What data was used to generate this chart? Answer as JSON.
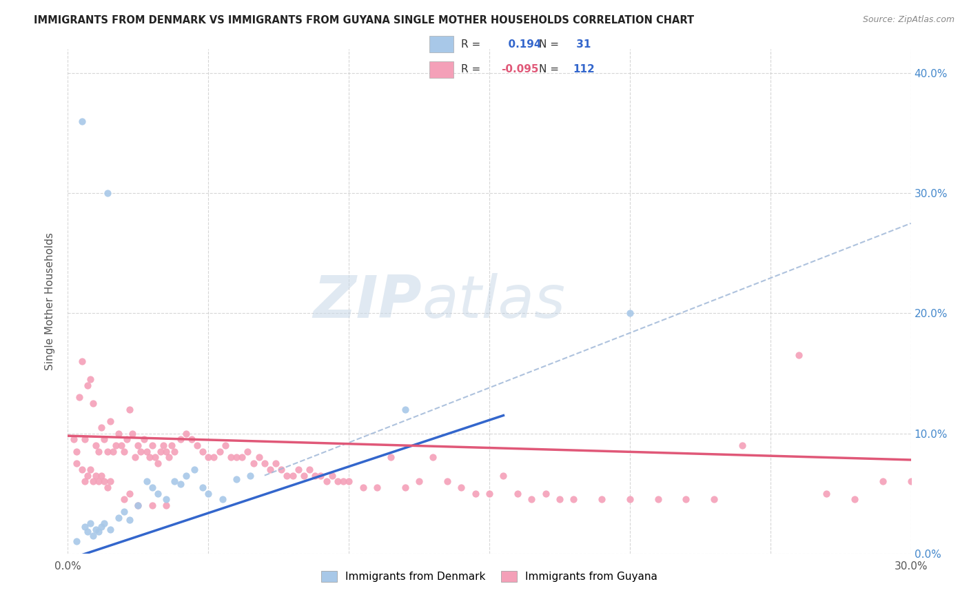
{
  "title": "IMMIGRANTS FROM DENMARK VS IMMIGRANTS FROM GUYANA SINGLE MOTHER HOUSEHOLDS CORRELATION CHART",
  "source": "Source: ZipAtlas.com",
  "ylabel": "Single Mother Households",
  "xlim": [
    0.0,
    0.3
  ],
  "ylim": [
    0.0,
    0.42
  ],
  "legend_denmark_label": "Immigrants from Denmark",
  "legend_guyana_label": "Immigrants from Guyana",
  "r_denmark": 0.194,
  "n_denmark": 31,
  "r_guyana": -0.095,
  "n_guyana": 112,
  "denmark_color": "#a8c8e8",
  "guyana_color": "#f4a0b8",
  "denmark_line_color": "#3366cc",
  "guyana_line_color": "#e05878",
  "dashed_line_color": "#a0b8d8",
  "watermark_zip": "ZIP",
  "watermark_atlas": "atlas",
  "background_color": "#ffffff",
  "denmark_scatter": [
    [
      0.003,
      0.01
    ],
    [
      0.005,
      0.36
    ],
    [
      0.006,
      0.022
    ],
    [
      0.007,
      0.018
    ],
    [
      0.008,
      0.025
    ],
    [
      0.009,
      0.015
    ],
    [
      0.01,
      0.02
    ],
    [
      0.011,
      0.018
    ],
    [
      0.012,
      0.022
    ],
    [
      0.013,
      0.025
    ],
    [
      0.014,
      0.3
    ],
    [
      0.015,
      0.02
    ],
    [
      0.018,
      0.03
    ],
    [
      0.02,
      0.035
    ],
    [
      0.022,
      0.028
    ],
    [
      0.025,
      0.04
    ],
    [
      0.028,
      0.06
    ],
    [
      0.03,
      0.055
    ],
    [
      0.032,
      0.05
    ],
    [
      0.035,
      0.045
    ],
    [
      0.038,
      0.06
    ],
    [
      0.04,
      0.058
    ],
    [
      0.042,
      0.065
    ],
    [
      0.045,
      0.07
    ],
    [
      0.048,
      0.055
    ],
    [
      0.05,
      0.05
    ],
    [
      0.055,
      0.045
    ],
    [
      0.06,
      0.062
    ],
    [
      0.065,
      0.065
    ],
    [
      0.12,
      0.12
    ],
    [
      0.2,
      0.2
    ]
  ],
  "guyana_scatter": [
    [
      0.002,
      0.095
    ],
    [
      0.003,
      0.085
    ],
    [
      0.003,
      0.075
    ],
    [
      0.004,
      0.13
    ],
    [
      0.005,
      0.16
    ],
    [
      0.005,
      0.07
    ],
    [
      0.006,
      0.095
    ],
    [
      0.006,
      0.06
    ],
    [
      0.007,
      0.14
    ],
    [
      0.007,
      0.065
    ],
    [
      0.008,
      0.145
    ],
    [
      0.008,
      0.07
    ],
    [
      0.009,
      0.125
    ],
    [
      0.009,
      0.06
    ],
    [
      0.01,
      0.09
    ],
    [
      0.01,
      0.065
    ],
    [
      0.011,
      0.085
    ],
    [
      0.011,
      0.06
    ],
    [
      0.012,
      0.105
    ],
    [
      0.012,
      0.065
    ],
    [
      0.013,
      0.095
    ],
    [
      0.013,
      0.06
    ],
    [
      0.014,
      0.085
    ],
    [
      0.014,
      0.055
    ],
    [
      0.015,
      0.11
    ],
    [
      0.015,
      0.06
    ],
    [
      0.016,
      0.085
    ],
    [
      0.017,
      0.09
    ],
    [
      0.018,
      0.1
    ],
    [
      0.019,
      0.09
    ],
    [
      0.02,
      0.085
    ],
    [
      0.02,
      0.045
    ],
    [
      0.021,
      0.095
    ],
    [
      0.022,
      0.12
    ],
    [
      0.022,
      0.05
    ],
    [
      0.023,
      0.1
    ],
    [
      0.024,
      0.08
    ],
    [
      0.025,
      0.09
    ],
    [
      0.025,
      0.04
    ],
    [
      0.026,
      0.085
    ],
    [
      0.027,
      0.095
    ],
    [
      0.028,
      0.085
    ],
    [
      0.029,
      0.08
    ],
    [
      0.03,
      0.09
    ],
    [
      0.03,
      0.04
    ],
    [
      0.031,
      0.08
    ],
    [
      0.032,
      0.075
    ],
    [
      0.033,
      0.085
    ],
    [
      0.034,
      0.09
    ],
    [
      0.035,
      0.085
    ],
    [
      0.035,
      0.04
    ],
    [
      0.036,
      0.08
    ],
    [
      0.037,
      0.09
    ],
    [
      0.038,
      0.085
    ],
    [
      0.04,
      0.095
    ],
    [
      0.042,
      0.1
    ],
    [
      0.044,
      0.095
    ],
    [
      0.046,
      0.09
    ],
    [
      0.048,
      0.085
    ],
    [
      0.05,
      0.08
    ],
    [
      0.052,
      0.08
    ],
    [
      0.054,
      0.085
    ],
    [
      0.056,
      0.09
    ],
    [
      0.058,
      0.08
    ],
    [
      0.06,
      0.08
    ],
    [
      0.062,
      0.08
    ],
    [
      0.064,
      0.085
    ],
    [
      0.066,
      0.075
    ],
    [
      0.068,
      0.08
    ],
    [
      0.07,
      0.075
    ],
    [
      0.072,
      0.07
    ],
    [
      0.074,
      0.075
    ],
    [
      0.076,
      0.07
    ],
    [
      0.078,
      0.065
    ],
    [
      0.08,
      0.065
    ],
    [
      0.082,
      0.07
    ],
    [
      0.084,
      0.065
    ],
    [
      0.086,
      0.07
    ],
    [
      0.088,
      0.065
    ],
    [
      0.09,
      0.065
    ],
    [
      0.092,
      0.06
    ],
    [
      0.094,
      0.065
    ],
    [
      0.096,
      0.06
    ],
    [
      0.098,
      0.06
    ],
    [
      0.1,
      0.06
    ],
    [
      0.105,
      0.055
    ],
    [
      0.11,
      0.055
    ],
    [
      0.115,
      0.08
    ],
    [
      0.12,
      0.055
    ],
    [
      0.125,
      0.06
    ],
    [
      0.13,
      0.08
    ],
    [
      0.135,
      0.06
    ],
    [
      0.14,
      0.055
    ],
    [
      0.145,
      0.05
    ],
    [
      0.15,
      0.05
    ],
    [
      0.155,
      0.065
    ],
    [
      0.16,
      0.05
    ],
    [
      0.165,
      0.045
    ],
    [
      0.17,
      0.05
    ],
    [
      0.175,
      0.045
    ],
    [
      0.18,
      0.045
    ],
    [
      0.19,
      0.045
    ],
    [
      0.2,
      0.045
    ],
    [
      0.21,
      0.045
    ],
    [
      0.22,
      0.045
    ],
    [
      0.23,
      0.045
    ],
    [
      0.24,
      0.09
    ],
    [
      0.26,
      0.165
    ],
    [
      0.27,
      0.05
    ],
    [
      0.28,
      0.045
    ],
    [
      0.29,
      0.06
    ],
    [
      0.3,
      0.06
    ]
  ],
  "dk_line_x0": 0.0,
  "dk_line_y0": -0.005,
  "dk_line_x1": 0.155,
  "dk_line_y1": 0.115,
  "gy_line_x0": 0.0,
  "gy_line_y0": 0.098,
  "gy_line_x1": 0.3,
  "gy_line_y1": 0.078,
  "dash_line_x0": 0.07,
  "dash_line_y0": 0.065,
  "dash_line_x1": 0.3,
  "dash_line_y1": 0.275
}
